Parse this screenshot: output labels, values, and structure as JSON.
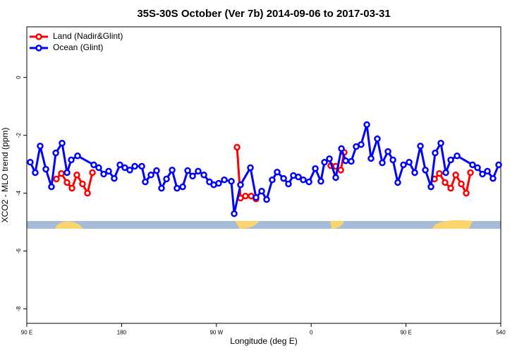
{
  "chart_data": {
    "type": "line",
    "title": "35S-30S October (Ver 7b)   2014-09-06 to 2017-03-31",
    "x_label": "Longitude (deg E)",
    "y_label": "XCO2 - MLO trend (ppm)",
    "xlim": [
      90,
      540
    ],
    "ylim": [
      -8.5,
      1.75
    ],
    "xticks": [
      {
        "value": 90,
        "label": "90 E"
      },
      180,
      {
        "value": 270,
        "label": "90 W"
      },
      {
        "value": 360,
        "label": "0"
      },
      {
        "value": 450,
        "label": "90 E"
      },
      540
    ],
    "yticks": [
      0,
      -2,
      -4,
      -6,
      -8
    ],
    "legend": "top-left",
    "series": [
      {
        "name": "Land (Nadir&Glint)",
        "color": "#ff0000",
        "x": [
          118.1,
          122.8,
          128.2,
          132.9,
          137.5,
          142.9,
          147.6,
          152.3,
          null,
          289.6,
          292.9,
          297.6,
          303.0,
          307.6,
          null,
          378.6,
          383.3,
          388.1,
          391.3,
          null,
          477.1,
          481.7,
          487.1,
          492.5,
          497.2,
          502.5,
          507.2,
          511.2
        ],
        "values": [
          -3.51,
          -3.32,
          -3.63,
          -3.83,
          -3.37,
          -3.68,
          -4.0,
          -3.29,
          null,
          -2.41,
          -4.17,
          -4.1,
          -4.1,
          -4.2,
          null,
          -3.05,
          -3.07,
          -3.2,
          -2.59,
          null,
          -3.51,
          -3.32,
          -3.63,
          -3.83,
          -3.37,
          -3.68,
          -4.0,
          -3.29
        ]
      },
      {
        "name": "Ocean (Glint)",
        "color": "#0000ff",
        "x": [
          93.3,
          98.0,
          102.7,
          108.1,
          113.4,
          117.5,
          123.5,
          128.2,
          132.2,
          138.2,
          153.6,
          158.3,
          163.0,
          167.7,
          173.0,
          178.4,
          183.1,
          187.8,
          192.5,
          199.2,
          202.5,
          207.9,
          213.2,
          217.9,
          222.6,
          228.0,
          232.6,
          238.0,
          242.7,
          247.4,
          252.7,
          258.1,
          263.4,
          267.5,
          272.1,
          277.5,
          284.2,
          286.9,
          292.9,
          302.3,
          307.6,
          313.0,
          317.7,
          323.0,
          327.7,
          333.8,
          338.4,
          343.1,
          347.8,
          352.5,
          357.9,
          363.9,
          369.2,
          372.6,
          377.3,
          383.3,
          388.7,
          392.7,
          398.0,
          402.7,
          407.4,
          412.8,
          416.8,
          422.8,
          427.5,
          432.9,
          437.6,
          442.2,
          447.6,
          453.0,
          458.3,
          463.7,
          468.4,
          473.7,
          477.7,
          483.1,
          487.8,
          492.5,
          498.5,
          513.2,
          517.9,
          522.6,
          527.3,
          532.6,
          538.0
        ],
        "values": [
          -2.93,
          -3.29,
          -2.37,
          -3.17,
          -3.78,
          -2.61,
          -2.27,
          -3.29,
          -2.85,
          -2.71,
          -3.02,
          -3.12,
          -3.34,
          -3.24,
          -3.49,
          -3.02,
          -3.12,
          -3.2,
          -3.07,
          -3.07,
          -3.61,
          -3.37,
          -3.22,
          -3.83,
          -3.51,
          -3.2,
          -3.83,
          -3.78,
          -3.22,
          -3.41,
          -3.24,
          -3.37,
          -3.61,
          -3.71,
          -3.66,
          -3.54,
          -3.59,
          -4.71,
          -3.71,
          -3.12,
          -4.15,
          -3.93,
          -4.22,
          -3.54,
          -3.27,
          -3.49,
          -3.68,
          -3.39,
          -3.44,
          -3.54,
          -3.61,
          -3.15,
          -3.59,
          -2.93,
          -2.81,
          -3.46,
          -2.46,
          -2.88,
          -2.9,
          -2.39,
          -2.32,
          -1.63,
          -2.8,
          -2.12,
          -2.95,
          -2.56,
          -2.85,
          -3.63,
          -3.02,
          -2.93,
          -3.29,
          -2.37,
          -3.2,
          -3.78,
          -2.61,
          -2.27,
          -3.29,
          -2.85,
          -2.71,
          -3.02,
          -3.12,
          -3.34,
          -3.24,
          -3.49,
          -3.02
        ]
      }
    ]
  }
}
